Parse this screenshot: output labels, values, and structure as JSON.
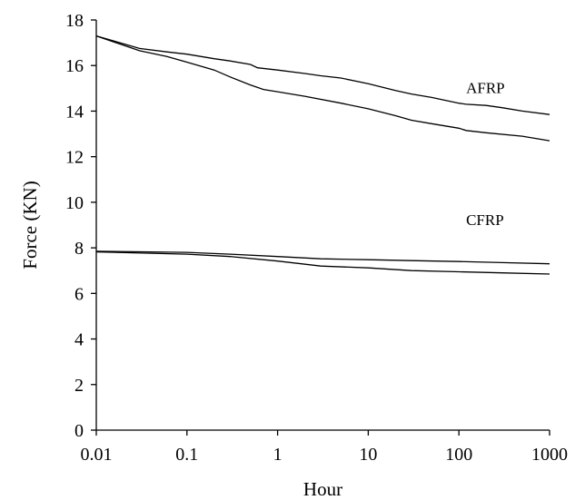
{
  "chart_data": {
    "type": "line",
    "title": "",
    "xlabel": "Hour",
    "ylabel": "Force (KN)",
    "xscale": "log",
    "xlim": [
      0.01,
      1000
    ],
    "ylim": [
      0,
      18
    ],
    "xticks": [
      0.01,
      0.1,
      1,
      10,
      100,
      1000
    ],
    "xtick_labels": [
      "0.01",
      "0.1",
      "1",
      "10",
      "100",
      "1000"
    ],
    "yticks": [
      0,
      2,
      4,
      6,
      8,
      10,
      12,
      14,
      16,
      18
    ],
    "ytick_labels": [
      "0",
      "2",
      "4",
      "6",
      "8",
      "10",
      "12",
      "14",
      "16",
      "18"
    ],
    "grid": false,
    "legend": "none",
    "annotations": [
      {
        "text": "AFRP",
        "x": 120,
        "y": 14.8
      },
      {
        "text": "CFRP",
        "x": 120,
        "y": 9.0
      }
    ],
    "series": [
      {
        "group": "AFRP",
        "x": [
          0.01,
          0.03,
          0.06,
          0.1,
          0.2,
          0.3,
          0.5,
          0.6,
          1,
          2,
          3,
          5,
          10,
          20,
          30,
          50,
          100,
          120,
          200,
          300,
          500,
          1000
        ],
        "y": [
          17.3,
          16.75,
          16.6,
          16.5,
          16.3,
          16.2,
          16.05,
          15.9,
          15.8,
          15.65,
          15.55,
          15.45,
          15.2,
          14.9,
          14.75,
          14.6,
          14.35,
          14.3,
          14.25,
          14.15,
          14.0,
          13.85
        ]
      },
      {
        "group": "AFRP",
        "x": [
          0.01,
          0.03,
          0.06,
          0.1,
          0.2,
          0.3,
          0.5,
          0.7,
          1,
          2,
          5,
          10,
          20,
          30,
          50,
          100,
          120,
          200,
          500,
          1000
        ],
        "y": [
          17.3,
          16.65,
          16.4,
          16.15,
          15.8,
          15.5,
          15.15,
          14.95,
          14.85,
          14.65,
          14.35,
          14.1,
          13.8,
          13.6,
          13.45,
          13.25,
          13.15,
          13.05,
          12.9,
          12.7
        ]
      },
      {
        "group": "CFRP",
        "x": [
          0.01,
          0.1,
          0.3,
          1,
          3,
          10,
          30,
          100,
          300,
          1000
        ],
        "y": [
          7.85,
          7.8,
          7.72,
          7.62,
          7.52,
          7.48,
          7.44,
          7.4,
          7.35,
          7.3
        ]
      },
      {
        "group": "CFRP",
        "x": [
          0.01,
          0.1,
          0.3,
          1,
          3,
          10,
          30,
          100,
          300,
          1000
        ],
        "y": [
          7.82,
          7.72,
          7.62,
          7.42,
          7.2,
          7.12,
          7.0,
          6.95,
          6.9,
          6.85
        ]
      }
    ]
  }
}
